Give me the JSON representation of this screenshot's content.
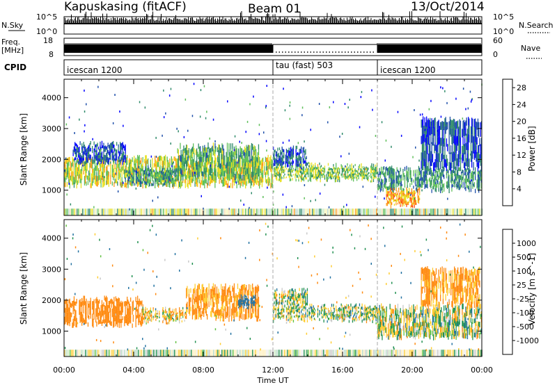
{
  "header": {
    "station": "Kapuskasing (fitACF)",
    "beam": "Beam 01",
    "date": "13/Oct/2014"
  },
  "strips": {
    "nsky_label": "N.Sky",
    "nsky_ticks": [
      "10^5",
      "10^0"
    ],
    "nsearch_label": "N.Search",
    "nsearch_ticks": [
      "10^5",
      "10^0"
    ],
    "freq_label_1": "Freq.",
    "freq_label_2": "[MHz]",
    "freq_ticks": [
      "18",
      "8"
    ],
    "nave_label": "Nave",
    "nave_ticks": [
      "60",
      "0"
    ],
    "cpid_label": "CPID",
    "cpid_segments": [
      {
        "name": "icescan 1200",
        "start_h": 0,
        "end_h": 12
      },
      {
        "name": "tau (fast) 503",
        "start_h": 12,
        "end_h": 18
      },
      {
        "name": "icescan 1200",
        "start_h": 18,
        "end_h": 24
      }
    ]
  },
  "chart_data": [
    {
      "type": "heatmap",
      "title": "Power",
      "ylabel": "Slant Range [km]",
      "xlabel": "Time UT",
      "x_ticks": [
        "00:00",
        "04:00",
        "08:00",
        "12:00",
        "16:00",
        "20:00",
        "00:00"
      ],
      "x_range_hours": [
        0,
        24
      ],
      "y_ticks": [
        1000,
        2000,
        3000,
        4000
      ],
      "ylim": [
        180,
        4600
      ],
      "colorbar": {
        "label": "Power [dB]",
        "ticks": [
          4,
          8,
          12,
          16,
          20,
          24,
          28
        ],
        "range": [
          0,
          30
        ],
        "colors": [
          "#0000ff",
          "#1f4faa",
          "#2f8a6a",
          "#5fbf5a",
          "#e8e020",
          "#ff9a1a",
          "#ff5010",
          "#e00000"
        ]
      },
      "echo_regions": [
        {
          "t0": 0.0,
          "t1": 12.0,
          "r0": 1150,
          "r1": 2050,
          "value": 16
        },
        {
          "t0": 0.5,
          "t1": 3.5,
          "r0": 1900,
          "r1": 2500,
          "value": 6
        },
        {
          "t0": 3.5,
          "t1": 6.5,
          "r0": 1200,
          "r1": 1700,
          "value": 10
        },
        {
          "t0": 6.5,
          "t1": 11.2,
          "r0": 1400,
          "r1": 2450,
          "value": 12
        },
        {
          "t0": 12.0,
          "t1": 18.0,
          "r0": 1350,
          "r1": 1800,
          "value": 14
        },
        {
          "t0": 12.0,
          "t1": 14.0,
          "r0": 1800,
          "r1": 2350,
          "value": 6
        },
        {
          "t0": 18.0,
          "t1": 24.0,
          "r0": 1000,
          "r1": 1700,
          "value": 10
        },
        {
          "t0": 18.5,
          "t1": 20.5,
          "r0": 500,
          "r1": 1000,
          "value": 20
        },
        {
          "t0": 20.5,
          "t1": 24.0,
          "r0": 1700,
          "r1": 3300,
          "value": 6
        }
      ]
    },
    {
      "type": "heatmap",
      "title": "Velocity",
      "ylabel": "Slant Range [km]",
      "xlabel": "Time UT",
      "x_ticks": [
        "00:00",
        "04:00",
        "08:00",
        "12:00",
        "16:00",
        "20:00",
        "00:00"
      ],
      "x_range_hours": [
        0,
        24
      ],
      "y_ticks": [
        1000,
        2000,
        3000,
        4000
      ],
      "ylim": [
        180,
        4600
      ],
      "colorbar": {
        "label": "Velocity [m s^-1]",
        "ticks": [
          "1000",
          "500",
          "100",
          "25",
          "-25",
          "-100",
          "-500",
          "-1000"
        ],
        "colors": [
          "#1030c0",
          "#2070a0",
          "#209050",
          "#60c040",
          "#c8c8c8",
          "#ffcc30",
          "#ff8a10",
          "#ff5010",
          "#e00000"
        ]
      },
      "echo_regions": [
        {
          "t0": 0.0,
          "t1": 4.5,
          "r0": 1200,
          "r1": 2050,
          "value": -300
        },
        {
          "t0": 4.5,
          "t1": 7.0,
          "r0": 1300,
          "r1": 1700,
          "value": -60
        },
        {
          "t0": 7.0,
          "t1": 11.2,
          "r0": 1400,
          "r1": 2450,
          "value": -150
        },
        {
          "t0": 10.0,
          "t1": 11.0,
          "r0": 1800,
          "r1": 2100,
          "value": 300
        },
        {
          "t0": 12.0,
          "t1": 18.0,
          "r0": 1350,
          "r1": 1800,
          "value": 0
        },
        {
          "t0": 12.0,
          "t1": 14.0,
          "r0": 1800,
          "r1": 2300,
          "value": 0
        },
        {
          "t0": 18.0,
          "t1": 24.0,
          "r0": 800,
          "r1": 1800,
          "value": 0
        },
        {
          "t0": 20.5,
          "t1": 24.0,
          "r0": 1800,
          "r1": 3000,
          "value": -150
        }
      ]
    }
  ]
}
